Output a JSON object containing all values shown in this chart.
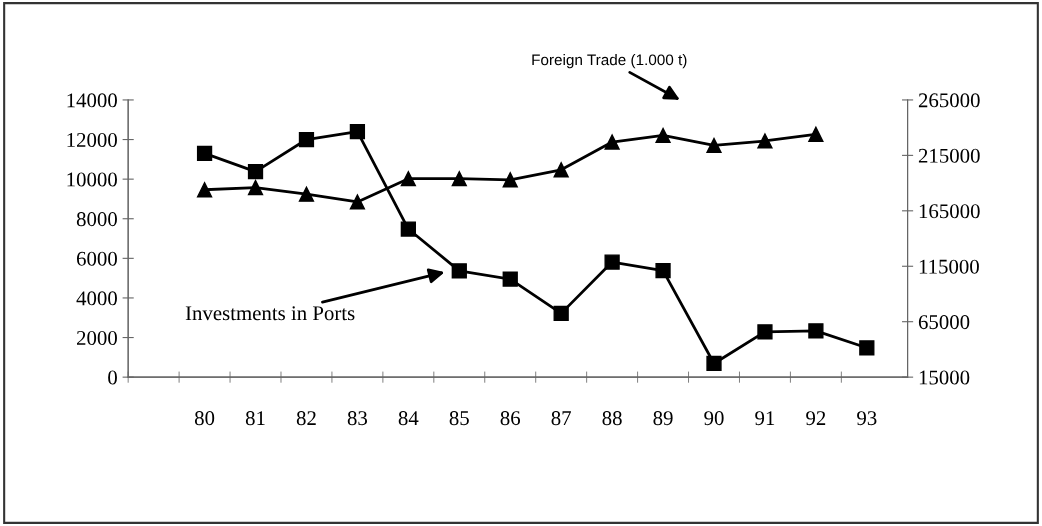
{
  "chart_data": {
    "type": "line",
    "categories": [
      "80",
      "81",
      "82",
      "83",
      "84",
      "85",
      "86",
      "87",
      "88",
      "89",
      "90",
      "91",
      "92",
      "93"
    ],
    "series": [
      {
        "color": "#000000",
        "marker": "square",
        "values": [
          11300,
          10380,
          12000,
          12400,
          7480,
          5370,
          4950,
          3220,
          5810,
          5380,
          690,
          2290,
          2340,
          1480
        ]
      },
      {
        "color": "#000000",
        "marker": "triangle",
        "axis": "y2",
        "values": [
          184000,
          186000,
          180000,
          173000,
          194000,
          194000,
          193000,
          202000,
          227000,
          233000,
          224000,
          228000,
          234000,
          null
        ]
      }
    ],
    "ylim": [
      0,
      14000
    ],
    "yticks": [
      0,
      2000,
      4000,
      6000,
      8000,
      10000,
      12000,
      14000
    ],
    "y2lim": [
      15000,
      265000
    ],
    "y2ticks": [
      15000,
      65000,
      115000,
      165000,
      215000,
      265000
    ],
    "grid": false,
    "legend": false,
    "line_style": "solid",
    "annotations": [
      "Foreign Trade (1.000 t)",
      "Investments in Ports"
    ]
  }
}
